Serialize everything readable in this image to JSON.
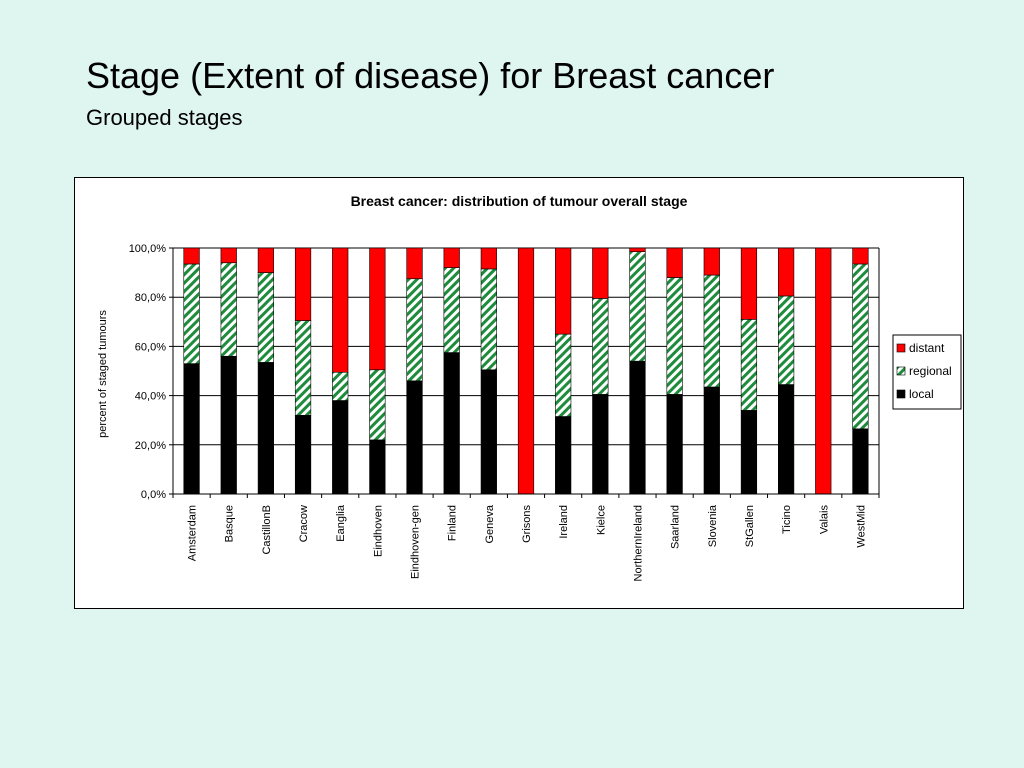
{
  "slide": {
    "title": "Stage (Extent of disease) for Breast cancer",
    "subtitle": "Grouped stages"
  },
  "chart_data": {
    "type": "bar",
    "stacked": true,
    "title": "Breast cancer: distribution of tumour overall stage",
    "xlabel": "",
    "ylabel": "percent of staged tumours",
    "ylim": [
      0,
      100
    ],
    "yticks": [
      "0,0%",
      "20,0%",
      "40,0%",
      "60,0%",
      "80,0%",
      "100,0%"
    ],
    "grid": true,
    "legend_position": "right",
    "categories": [
      "Amsterdam",
      "Basque",
      "CastillonB",
      "Cracow",
      "Eanglia",
      "Eindhoven",
      "Eindhoven-gen",
      "Finland",
      "Geneva",
      "Grisons",
      "Ireland",
      "Kielce",
      "NorthernIreland",
      "Saarland",
      "Slovenia",
      "StGallen",
      "Ticino",
      "Valais",
      "WestMid"
    ],
    "series": [
      {
        "name": "local",
        "color": "#000000",
        "pattern": "solid",
        "values": [
          53,
          56,
          53.5,
          32,
          38,
          22,
          46,
          57.5,
          50.5,
          0,
          31.5,
          40.5,
          54,
          40.5,
          43.5,
          34,
          44.5,
          0,
          26.5
        ]
      },
      {
        "name": "regional",
        "color": "#1e8c3c",
        "pattern": "diagonal-stripes",
        "values": [
          40.5,
          38,
          36.5,
          38.5,
          11.5,
          28.5,
          41.5,
          34.5,
          41,
          0,
          33.5,
          39,
          44.5,
          47.5,
          45.5,
          37,
          36,
          0,
          67
        ]
      },
      {
        "name": "distant",
        "color": "#ff0000",
        "pattern": "solid",
        "values": [
          6.5,
          6,
          10,
          29.5,
          50.5,
          49.5,
          12.5,
          8,
          8.5,
          100,
          35,
          20.5,
          1.5,
          12,
          11,
          29,
          19.5,
          100,
          6.5
        ]
      }
    ],
    "legend_order": [
      "distant",
      "regional",
      "local"
    ]
  }
}
